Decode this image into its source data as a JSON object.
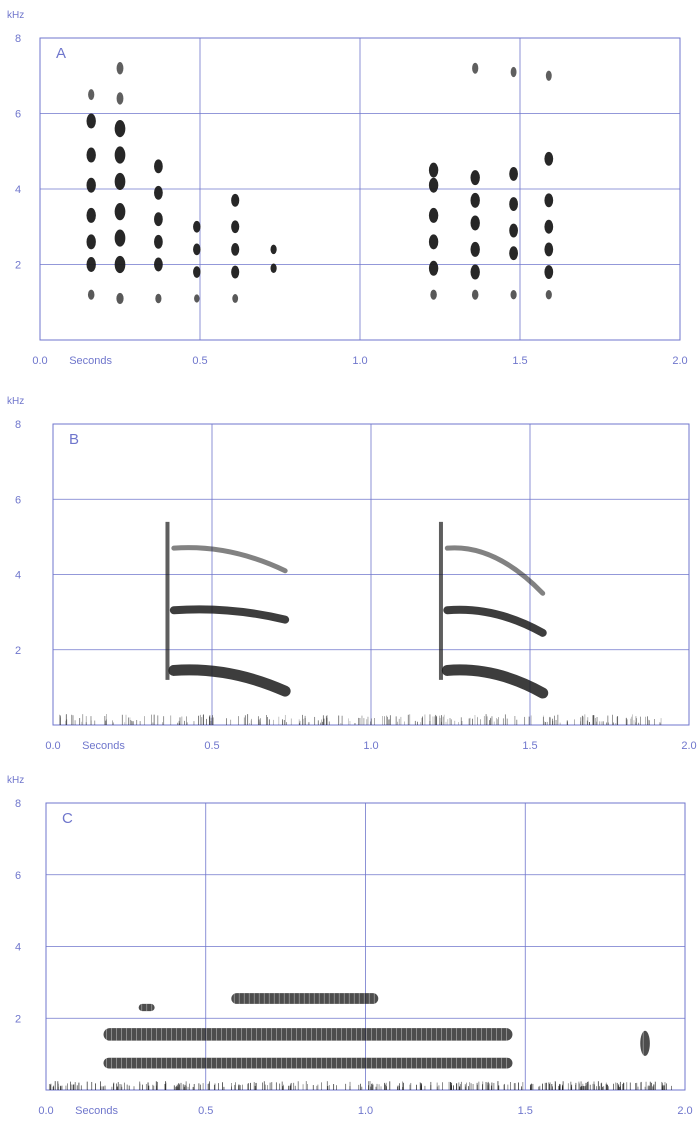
{
  "colors": {
    "axis": "#6f76cc",
    "ink": "#1b1b1b",
    "background": "#ffffff"
  },
  "chart_data": [
    {
      "type": "heatmap",
      "panel_label": "A",
      "y_unit": "kHz",
      "x_tick_labels": [
        "0.0",
        "0.5",
        "1.0",
        "1.5",
        "2.0"
      ],
      "x_label": "Seconds",
      "y_tick_labels": [
        "2",
        "4",
        "6",
        "8"
      ],
      "xlim": [
        0,
        2
      ],
      "ylim": [
        0,
        8
      ],
      "grid": true,
      "events": [
        {
          "t": 0.16,
          "f": [
            1.2,
            2.0,
            2.6,
            3.3,
            4.1,
            4.9,
            5.8,
            6.5
          ],
          "s": 1.0
        },
        {
          "t": 0.25,
          "f": [
            1.1,
            2.0,
            2.7,
            3.4,
            4.2,
            4.9,
            5.6,
            6.4,
            7.2
          ],
          "s": 1.2
        },
        {
          "t": 0.37,
          "f": [
            1.1,
            2.0,
            2.6,
            3.2,
            3.9,
            4.6
          ],
          "s": 0.9
        },
        {
          "t": 0.49,
          "f": [
            1.1,
            1.8,
            2.4,
            3.0
          ],
          "s": 0.7
        },
        {
          "t": 0.61,
          "f": [
            1.1,
            1.8,
            2.4,
            3.0,
            3.7
          ],
          "s": 0.8
        },
        {
          "t": 0.73,
          "f": [
            1.9,
            2.4
          ],
          "s": 0.5
        },
        {
          "t": 1.23,
          "f": [
            1.2,
            1.9,
            2.6,
            3.3,
            4.1,
            4.5
          ],
          "s": 1.0
        },
        {
          "t": 1.36,
          "f": [
            1.2,
            1.8,
            2.4,
            3.1,
            3.7,
            4.3,
            7.2
          ],
          "s": 1.0
        },
        {
          "t": 1.48,
          "f": [
            1.2,
            2.3,
            2.9,
            3.6,
            4.4,
            7.1
          ],
          "s": 0.9
        },
        {
          "t": 1.59,
          "f": [
            1.2,
            1.8,
            2.4,
            3.0,
            3.7,
            4.8,
            7.0
          ],
          "s": 0.9
        }
      ]
    },
    {
      "type": "heatmap",
      "panel_label": "B",
      "y_unit": "kHz",
      "x_tick_labels": [
        "0.0",
        "0.5",
        "1.0",
        "1.5",
        "2.0"
      ],
      "x_label": "Seconds",
      "y_tick_labels": [
        "2",
        "4",
        "6",
        "8"
      ],
      "xlim": [
        0,
        2
      ],
      "ylim": [
        0,
        8
      ],
      "grid": true,
      "syllables": [
        {
          "t0": 0.36,
          "t1": 0.73,
          "bands": [
            [
              1.45,
              0.9
            ],
            [
              3.05,
              2.8
            ],
            [
              4.7,
              4.1
            ]
          ]
        },
        {
          "t0": 1.22,
          "t1": 1.54,
          "bands": [
            [
              1.45,
              0.85
            ],
            [
              3.05,
              2.45
            ],
            [
              4.7,
              3.5
            ]
          ]
        }
      ]
    },
    {
      "type": "heatmap",
      "panel_label": "C",
      "y_unit": "kHz",
      "x_tick_labels": [
        "0.0",
        "0.5",
        "1.0",
        "1.5",
        "2.0"
      ],
      "x_label": "Seconds",
      "y_tick_labels": [
        "2",
        "4",
        "6",
        "8"
      ],
      "xlim": [
        0,
        2
      ],
      "ylim": [
        0,
        8
      ],
      "grid": true,
      "bands": [
        {
          "t0": 0.18,
          "t1": 1.46,
          "f": 1.55,
          "w": 0.35
        },
        {
          "t0": 0.18,
          "t1": 1.46,
          "f": 0.75,
          "w": 0.3
        },
        {
          "t0": 0.58,
          "t1": 1.04,
          "f": 2.55,
          "w": 0.3
        },
        {
          "t0": 0.29,
          "t1": 0.34,
          "f": 2.3,
          "w": 0.2
        },
        {
          "t0": 1.86,
          "t1": 1.89,
          "f": 1.3,
          "w": 0.7
        }
      ]
    }
  ]
}
